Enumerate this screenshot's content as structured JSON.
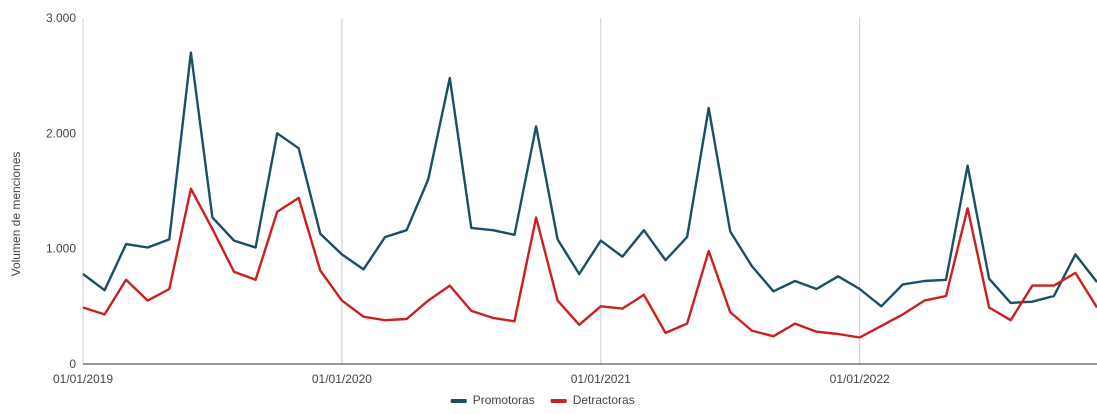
{
  "chart_data": {
    "type": "line",
    "ylabel": "Volumen de menciones",
    "xlabel": "",
    "ylim": [
      0,
      3000
    ],
    "y_ticks": [
      0,
      1000,
      2000,
      3000
    ],
    "y_tick_labels": [
      "0",
      "1.000",
      "2.000",
      "3.000"
    ],
    "x_ticks": [
      "2019-01-01",
      "2020-01-01",
      "2021-01-01",
      "2022-01-01"
    ],
    "x_tick_labels": [
      "01/01/2019",
      "01/01/2020",
      "01/01/2021",
      "01/01/2022"
    ],
    "x_start": "2019-01",
    "grid": "vertical",
    "legend": "bottom-center",
    "x": [
      "2019-01",
      "2019-02",
      "2019-03",
      "2019-04",
      "2019-05",
      "2019-06",
      "2019-07",
      "2019-08",
      "2019-09",
      "2019-10",
      "2019-11",
      "2019-12",
      "2020-01",
      "2020-02",
      "2020-03",
      "2020-04",
      "2020-05",
      "2020-06",
      "2020-07",
      "2020-08",
      "2020-09",
      "2020-10",
      "2020-11",
      "2020-12",
      "2021-01",
      "2021-02",
      "2021-03",
      "2021-04",
      "2021-05",
      "2021-06",
      "2021-07",
      "2021-08",
      "2021-09",
      "2021-10",
      "2021-11",
      "2021-12",
      "2022-01",
      "2022-02",
      "2022-03",
      "2022-04",
      "2022-05",
      "2022-06",
      "2022-07",
      "2022-08",
      "2022-09",
      "2022-10",
      "2022-11",
      "2022-12"
    ],
    "series": [
      {
        "name": "Promotoras",
        "color": "#1b4f63",
        "values": [
          780,
          640,
          1040,
          1010,
          1080,
          2700,
          1270,
          1070,
          1010,
          2000,
          1870,
          1130,
          950,
          820,
          1100,
          1160,
          1600,
          2480,
          1180,
          1160,
          1120,
          2060,
          1080,
          780,
          1070,
          930,
          1160,
          900,
          1100,
          2220,
          1150,
          850,
          630,
          720,
          650,
          760,
          650,
          500,
          690,
          720,
          730,
          1720,
          740,
          530,
          540,
          590,
          950,
          710
        ]
      },
      {
        "name": "Detractoras",
        "color": "#cc1f1f",
        "values": [
          490,
          430,
          730,
          550,
          650,
          1520,
          1170,
          800,
          730,
          1320,
          1440,
          810,
          550,
          410,
          380,
          390,
          550,
          680,
          460,
          400,
          370,
          1270,
          550,
          340,
          500,
          480,
          600,
          270,
          350,
          980,
          450,
          290,
          240,
          350,
          280,
          260,
          230,
          330,
          430,
          550,
          590,
          1350,
          490,
          380,
          680,
          680,
          790,
          490
        ]
      }
    ]
  }
}
